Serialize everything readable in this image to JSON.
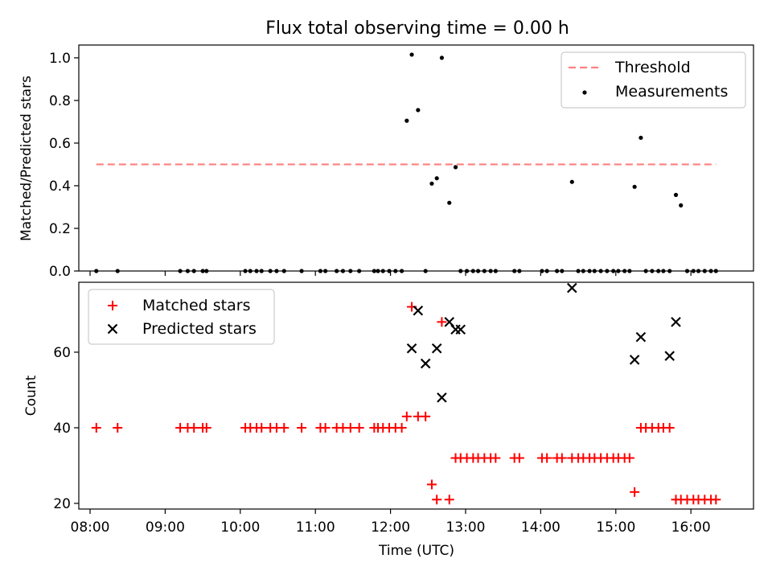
{
  "figure": {
    "title": "Flux total observing time = 0.00 h"
  },
  "chart_data": [
    {
      "type": "scatter",
      "panel": "top",
      "ylabel": "Matched/Predicted stars",
      "xlim": [
        "07:51",
        "16:50"
      ],
      "ylim": [
        0,
        1.06
      ],
      "yticks": [
        0.0,
        0.2,
        0.4,
        0.6,
        0.8,
        1.0
      ],
      "ytick_labels": [
        "0.0",
        "0.2",
        "0.4",
        "0.6",
        "0.8",
        "1.0"
      ],
      "grid": false,
      "legend_position": "upper right",
      "threshold": {
        "name": "Threshold",
        "value": 0.5,
        "x_range": [
          "08:05",
          "16:20"
        ],
        "color": "#ff7f7f",
        "style": "dashed"
      },
      "series": [
        {
          "name": "Measurements",
          "marker": "dot",
          "color": "#000000",
          "x": [
            "08:05",
            "08:22",
            "09:12",
            "09:18",
            "09:23",
            "09:30",
            "09:33",
            "10:04",
            "10:08",
            "10:13",
            "10:17",
            "10:24",
            "10:29",
            "10:35",
            "10:49",
            "11:04",
            "11:08",
            "11:17",
            "11:22",
            "11:28",
            "11:35",
            "11:47",
            "11:50",
            "11:54",
            "11:59",
            "12:04",
            "12:09",
            "12:13",
            "12:17",
            "12:22",
            "12:28",
            "12:33",
            "12:37",
            "12:41",
            "12:47",
            "12:52",
            "12:56",
            "13:01",
            "13:06",
            "13:10",
            "13:15",
            "13:20",
            "13:24",
            "13:39",
            "13:43",
            "14:01",
            "14:05",
            "14:13",
            "14:17",
            "14:25",
            "14:30",
            "14:34",
            "14:39",
            "14:43",
            "14:48",
            "14:53",
            "14:58",
            "15:02",
            "15:07",
            "15:11",
            "15:15",
            "15:20",
            "15:24",
            "15:29",
            "15:34",
            "15:38",
            "15:43",
            "15:48",
            "15:52",
            "15:57",
            "16:02",
            "16:06",
            "16:11",
            "16:16",
            "16:20"
          ],
          "y": [
            0,
            0,
            0,
            0,
            0,
            0,
            0,
            0,
            0,
            0,
            0,
            0,
            0,
            0,
            0,
            0,
            0,
            0,
            0,
            0,
            0,
            0,
            0,
            0,
            0,
            0,
            0,
            0.705,
            1.015,
            0.755,
            0,
            0.41,
            0.435,
            1.0,
            0.32,
            0.487,
            0,
            0,
            0,
            0,
            0,
            0,
            0,
            0,
            0,
            0,
            0,
            0,
            0,
            0.418,
            0,
            0,
            0,
            0,
            0,
            0,
            0,
            0,
            0,
            0,
            0.395,
            0.625,
            0,
            0,
            0,
            0,
            0,
            0.357,
            0.308,
            0,
            0,
            0,
            0,
            0,
            0
          ]
        }
      ]
    },
    {
      "type": "scatter",
      "panel": "bottom",
      "xlabel": "Time (UTC)",
      "ylabel": "Count",
      "xlim": [
        "07:51",
        "16:50"
      ],
      "ylim": [
        18.5,
        78.5
      ],
      "xticks": [
        "08:00",
        "09:00",
        "10:00",
        "11:00",
        "12:00",
        "13:00",
        "14:00",
        "15:00",
        "16:00"
      ],
      "yticks": [
        20,
        40,
        60
      ],
      "ytick_labels": [
        "20",
        "40",
        "60"
      ],
      "grid": false,
      "legend_position": "upper left",
      "series": [
        {
          "name": "Matched stars",
          "marker": "plus",
          "color": "#ff0000",
          "x": [
            "08:05",
            "08:22",
            "09:12",
            "09:18",
            "09:23",
            "09:30",
            "09:33",
            "10:04",
            "10:08",
            "10:13",
            "10:17",
            "10:24",
            "10:29",
            "10:35",
            "10:49",
            "11:04",
            "11:08",
            "11:17",
            "11:22",
            "11:28",
            "11:35",
            "11:47",
            "11:50",
            "11:54",
            "11:59",
            "12:04",
            "12:09",
            "12:13",
            "12:17",
            "12:22",
            "12:28",
            "12:33",
            "12:37",
            "12:41",
            "12:47",
            "12:52",
            "12:56",
            "13:01",
            "13:06",
            "13:10",
            "13:15",
            "13:20",
            "13:24",
            "13:39",
            "13:43",
            "14:01",
            "14:05",
            "14:13",
            "14:17",
            "14:25",
            "14:30",
            "14:34",
            "14:39",
            "14:43",
            "14:48",
            "14:53",
            "14:58",
            "15:02",
            "15:07",
            "15:11",
            "15:15",
            "15:20",
            "15:24",
            "15:29",
            "15:34",
            "15:38",
            "15:43",
            "15:48",
            "15:52",
            "15:57",
            "16:02",
            "16:06",
            "16:11",
            "16:16",
            "16:20"
          ],
          "y": [
            40,
            40,
            40,
            40,
            40,
            40,
            40,
            40,
            40,
            40,
            40,
            40,
            40,
            40,
            40,
            40,
            40,
            40,
            40,
            40,
            40,
            40,
            40,
            40,
            40,
            40,
            40,
            43,
            72,
            43,
            43,
            25,
            21,
            68,
            21,
            32,
            32,
            32,
            32,
            32,
            32,
            32,
            32,
            32,
            32,
            32,
            32,
            32,
            32,
            32,
            32,
            32,
            32,
            32,
            32,
            32,
            32,
            32,
            32,
            32,
            23,
            40,
            40,
            40,
            40,
            40,
            40,
            21,
            21,
            21,
            21,
            21,
            21,
            21,
            21
          ]
        },
        {
          "name": "Predicted stars",
          "marker": "x",
          "color": "#000000",
          "x": [
            "12:17",
            "12:22",
            "12:28",
            "12:37",
            "12:41",
            "12:47",
            "12:52",
            "12:56",
            "14:25",
            "15:15",
            "15:20",
            "15:43",
            "15:48"
          ],
          "y": [
            61,
            71,
            57,
            61,
            48,
            68,
            66,
            66,
            77,
            58,
            64,
            59,
            68
          ]
        }
      ]
    }
  ]
}
